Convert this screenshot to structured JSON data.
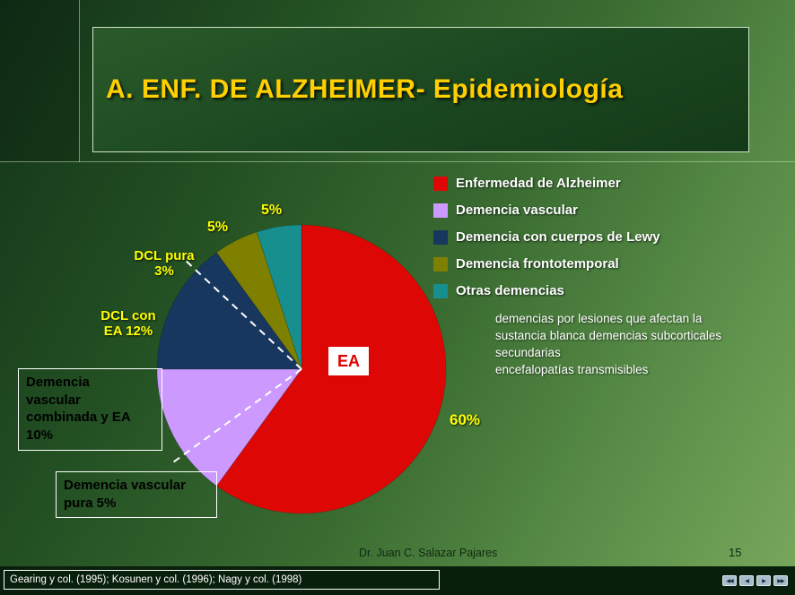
{
  "slide": {
    "title": "A. ENF. DE ALZHEIMER- Epidemiología",
    "footer": {
      "author": "Dr. Juan C. Salazar Pajares",
      "page_number": "15"
    },
    "citation": "Gearing y col. (1995); Kosunen y col. (1996); Nagy y col. (1998)"
  },
  "legend": {
    "items": [
      {
        "label": "Enfermedad de Alzheimer",
        "color": "#dd0806"
      },
      {
        "label": "Demencia vascular",
        "color": "#cc99ff"
      },
      {
        "label": "Demencia con cuerpos de Lewy",
        "color": "#17375e"
      },
      {
        "label": "Demencia frontotemporal",
        "color": "#7f7f00"
      },
      {
        "label": "Otras demencias",
        "color": "#178f8f"
      }
    ],
    "otras_detail_lines": [
      "demencias por lesiones que afectan la",
      "sustancia blanca demencias subcorticales",
      "secundarias",
      "encefalopatías transmisibles"
    ]
  },
  "pie_labels": {
    "otras_pct": "5%",
    "frontotemporal_pct": "5%",
    "dcl_pura": "DCL pura\n3%",
    "dcl_con_ea": "DCL con\nEA 12%",
    "ea_center": "EA",
    "alzheimer_pct": "60%",
    "vascular_combinada": "Demencia\nvascular\ncombinada y EA\n10%",
    "vascular_pura": "Demencia vascular\npura 5%"
  },
  "chart_data": {
    "type": "pie",
    "title": "A. ENF. DE ALZHEIMER- Epidemiología",
    "direction": "clockwise",
    "start_angle": "top",
    "legend_position": "right",
    "slices": [
      {
        "label": "Enfermedad de Alzheimer",
        "value": 60,
        "color": "#dd0806"
      },
      {
        "label": "Demencia vascular",
        "value": 15,
        "color": "#cc99ff"
      },
      {
        "label": "Demencia con cuerpos de Lewy",
        "value": 15,
        "color": "#17375e"
      },
      {
        "label": "Demencia frontotemporal",
        "value": 5,
        "color": "#7f7f00"
      },
      {
        "label": "Otras demencias",
        "value": 5,
        "color": "#178f8f"
      }
    ],
    "sub_slices": [
      {
        "parent": "Demencia vascular",
        "label": "Demencia vascular pura",
        "value": 5
      },
      {
        "parent": "Demencia vascular",
        "label": "Demencia vascular combinada y EA",
        "value": 10
      },
      {
        "parent": "Demencia con cuerpos de Lewy",
        "label": "DCL con EA",
        "value": 12
      },
      {
        "parent": "Demencia con cuerpos de Lewy",
        "label": "DCL pura",
        "value": 3
      }
    ],
    "dashed_divider_cumulative_pct": [
      65,
      87
    ],
    "annotations": [
      "5%",
      "5%",
      "DCL pura 3%",
      "DCL con EA 12%",
      "EA",
      "60%",
      "Demencia vascular combinada y EA 10%",
      "Demencia vascular pura 5%"
    ]
  },
  "nav_buttons": [
    {
      "name": "first-slide-button",
      "glyph": "◀◀"
    },
    {
      "name": "previous-slide-button",
      "glyph": "◀"
    },
    {
      "name": "next-slide-button",
      "glyph": "▶"
    },
    {
      "name": "last-slide-button",
      "glyph": "▶▶"
    }
  ]
}
